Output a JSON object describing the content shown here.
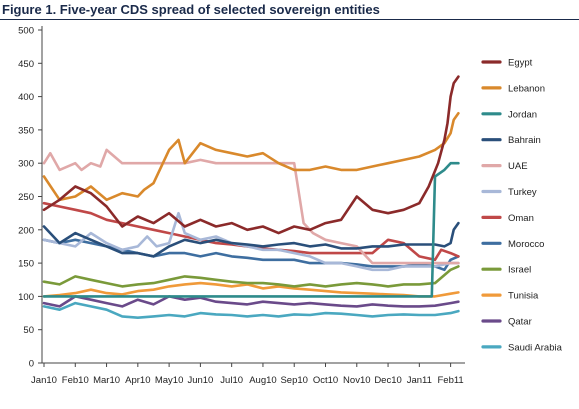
{
  "title": "Figure 1. Five-year CDS spread of selected sovereign entities",
  "chart_data": {
    "type": "line",
    "title": "Figure 1. Five-year CDS spread of selected sovereign entities",
    "xlabel": "",
    "ylabel": "",
    "ylim": [
      0,
      500
    ],
    "yticks": [
      0,
      50,
      100,
      150,
      200,
      250,
      300,
      350,
      400,
      450,
      500
    ],
    "xlim": [
      0,
      13.3
    ],
    "xticks": [
      {
        "x": 0,
        "label": "Jan10"
      },
      {
        "x": 1,
        "label": "Feb10"
      },
      {
        "x": 2,
        "label": "Mar10"
      },
      {
        "x": 3,
        "label": "Apr10"
      },
      {
        "x": 4,
        "label": "May10"
      },
      {
        "x": 5,
        "label": "Jun10"
      },
      {
        "x": 6,
        "label": "Jul10"
      },
      {
        "x": 7,
        "label": "Aug10"
      },
      {
        "x": 8,
        "label": "Sep10"
      },
      {
        "x": 9,
        "label": "Oct10"
      },
      {
        "x": 10,
        "label": "Nov10"
      },
      {
        "x": 11,
        "label": "Dec10"
      },
      {
        "x": 12,
        "label": "Jan11"
      },
      {
        "x": 13,
        "label": "Feb11"
      }
    ],
    "grid": false,
    "legend": "right",
    "series": [
      {
        "name": "Egypt",
        "color": "#8b2a2a",
        "x": [
          0,
          0.5,
          1,
          1.5,
          2,
          2.5,
          3,
          3.5,
          4,
          4.5,
          5,
          5.5,
          6,
          6.5,
          7,
          7.5,
          8,
          8.5,
          9,
          9.5,
          10,
          10.5,
          11,
          11.5,
          12,
          12.3,
          12.6,
          12.8,
          12.9,
          13,
          13.1,
          13.25
        ],
        "y": [
          230,
          245,
          265,
          255,
          235,
          205,
          220,
          210,
          225,
          205,
          215,
          205,
          210,
          200,
          205,
          195,
          205,
          200,
          210,
          215,
          250,
          230,
          225,
          230,
          240,
          265,
          300,
          335,
          360,
          400,
          420,
          430
        ]
      },
      {
        "name": "Lebanon",
        "color": "#d9892c",
        "x": [
          0,
          0.5,
          1,
          1.5,
          2,
          2.5,
          3,
          3.2,
          3.5,
          4,
          4.3,
          4.5,
          5,
          5.5,
          6,
          6.5,
          7,
          7.5,
          8,
          8.5,
          9,
          9.5,
          10,
          10.5,
          11,
          11.5,
          12,
          12.5,
          12.8,
          13,
          13.1,
          13.25
        ],
        "y": [
          280,
          245,
          250,
          265,
          245,
          255,
          250,
          260,
          270,
          320,
          335,
          300,
          330,
          320,
          315,
          310,
          315,
          300,
          290,
          290,
          295,
          290,
          290,
          295,
          300,
          305,
          310,
          320,
          330,
          345,
          365,
          375
        ]
      },
      {
        "name": "Jordan",
        "color": "#2e8b8b",
        "x": [
          0,
          1,
          2,
          3,
          4,
          5,
          6,
          7,
          8,
          9,
          10,
          11,
          12,
          12.4,
          12.5,
          12.8,
          13,
          13.25
        ],
        "y": [
          100,
          100,
          100,
          100,
          100,
          100,
          100,
          100,
          100,
          100,
          100,
          100,
          100,
          100,
          280,
          290,
          300,
          300
        ]
      },
      {
        "name": "Bahrain",
        "color": "#2a4f7a",
        "x": [
          0,
          0.5,
          1,
          1.5,
          2,
          2.5,
          3,
          3.5,
          4,
          4.5,
          5,
          5.5,
          6,
          6.5,
          7,
          7.5,
          8,
          8.5,
          9,
          9.5,
          10,
          10.5,
          11,
          11.5,
          12,
          12.5,
          12.8,
          13,
          13.1,
          13.25
        ],
        "y": [
          205,
          180,
          195,
          185,
          175,
          165,
          165,
          160,
          175,
          185,
          180,
          185,
          180,
          178,
          175,
          178,
          180,
          175,
          178,
          172,
          172,
          175,
          175,
          178,
          178,
          178,
          175,
          180,
          200,
          210
        ]
      },
      {
        "name": "UAE",
        "color": "#e0a8a8",
        "x": [
          0,
          0.2,
          0.5,
          1,
          1.2,
          1.5,
          1.8,
          2,
          2.5,
          3,
          3.5,
          4,
          4.5,
          5,
          5.5,
          6,
          6.5,
          7,
          7.5,
          8,
          8.3,
          8.6,
          9,
          9.5,
          10,
          10.5,
          11,
          11.5,
          12,
          12.5,
          13,
          13.25
        ],
        "y": [
          300,
          315,
          290,
          300,
          290,
          300,
          295,
          320,
          300,
          300,
          300,
          300,
          300,
          305,
          300,
          300,
          300,
          300,
          300,
          300,
          210,
          195,
          185,
          180,
          175,
          150,
          150,
          150,
          150,
          150,
          150,
          150
        ]
      },
      {
        "name": "Turkey",
        "color": "#a8b8d8",
        "x": [
          0,
          0.5,
          1,
          1.5,
          2,
          2.5,
          3,
          3.3,
          3.6,
          4,
          4.3,
          4.5,
          5,
          5.5,
          6,
          6.5,
          7,
          7.5,
          8,
          8.5,
          9,
          9.5,
          10,
          10.5,
          11,
          11.5,
          12,
          12.5,
          13,
          13.25
        ],
        "y": [
          185,
          180,
          175,
          195,
          180,
          170,
          175,
          190,
          175,
          180,
          225,
          195,
          185,
          190,
          180,
          175,
          170,
          170,
          165,
          160,
          150,
          150,
          145,
          140,
          140,
          145,
          145,
          145,
          150,
          150
        ]
      },
      {
        "name": "Oman",
        "color": "#c04848",
        "x": [
          0,
          0.5,
          1,
          1.5,
          2,
          2.5,
          3,
          3.5,
          4,
          4.5,
          5,
          5.5,
          6,
          6.5,
          7,
          7.5,
          8,
          8.5,
          9,
          9.5,
          10,
          10.5,
          11,
          11.5,
          12,
          12.5,
          12.7,
          13,
          13.25
        ],
        "y": [
          240,
          235,
          230,
          225,
          215,
          210,
          205,
          200,
          195,
          190,
          185,
          180,
          178,
          175,
          172,
          170,
          168,
          165,
          165,
          165,
          165,
          165,
          185,
          180,
          160,
          155,
          170,
          165,
          160
        ]
      },
      {
        "name": "Morocco",
        "color": "#3e6ea0",
        "x": [
          0,
          0.5,
          1,
          1.5,
          2,
          2.5,
          3,
          3.5,
          4,
          4.5,
          5,
          5.5,
          6,
          6.5,
          7,
          7.5,
          8,
          8.5,
          9,
          9.5,
          10,
          10.5,
          11,
          11.5,
          12,
          12.5,
          12.8,
          13,
          13.25
        ],
        "y": [
          185,
          180,
          185,
          180,
          175,
          170,
          165,
          160,
          165,
          165,
          160,
          165,
          160,
          158,
          155,
          155,
          155,
          150,
          150,
          150,
          148,
          145,
          145,
          145,
          148,
          145,
          140,
          155,
          160
        ]
      },
      {
        "name": "Israel",
        "color": "#7a9a3a",
        "x": [
          0,
          0.5,
          1,
          1.5,
          2,
          2.5,
          3,
          3.5,
          4,
          4.5,
          5,
          5.5,
          6,
          6.5,
          7,
          7.5,
          8,
          8.5,
          9,
          9.5,
          10,
          10.5,
          11,
          11.5,
          12,
          12.5,
          13,
          13.25
        ],
        "y": [
          122,
          118,
          130,
          125,
          120,
          115,
          118,
          120,
          125,
          130,
          128,
          125,
          122,
          120,
          120,
          118,
          115,
          118,
          115,
          118,
          120,
          118,
          115,
          118,
          118,
          120,
          140,
          145
        ]
      },
      {
        "name": "Tunisia",
        "color": "#f09a3a",
        "x": [
          0,
          0.5,
          1,
          1.5,
          2,
          2.5,
          3,
          3.5,
          4,
          4.5,
          5,
          5.5,
          6,
          6.5,
          7,
          7.5,
          8,
          8.5,
          9,
          9.5,
          10,
          10.5,
          11,
          11.5,
          12,
          12.5,
          13,
          13.25
        ],
        "y": [
          100,
          102,
          105,
          110,
          105,
          103,
          108,
          110,
          115,
          118,
          120,
          118,
          115,
          118,
          112,
          115,
          112,
          110,
          108,
          106,
          105,
          104,
          103,
          102,
          100,
          100,
          104,
          106
        ]
      },
      {
        "name": "Qatar",
        "color": "#6a4a8a",
        "x": [
          0,
          0.5,
          1,
          1.5,
          2,
          2.5,
          3,
          3.5,
          4,
          4.5,
          5,
          5.5,
          6,
          6.5,
          7,
          7.5,
          8,
          8.5,
          9,
          9.5,
          10,
          10.5,
          11,
          11.5,
          12,
          12.5,
          13,
          13.25
        ],
        "y": [
          90,
          85,
          100,
          95,
          90,
          85,
          95,
          88,
          100,
          95,
          98,
          92,
          90,
          88,
          92,
          90,
          88,
          90,
          88,
          86,
          85,
          88,
          86,
          85,
          85,
          86,
          90,
          92
        ]
      },
      {
        "name": "Saudi Arabia",
        "color": "#4aa8c0",
        "x": [
          0,
          0.5,
          1,
          1.5,
          2,
          2.5,
          3,
          3.5,
          4,
          4.5,
          5,
          5.5,
          6,
          6.5,
          7,
          7.5,
          8,
          8.5,
          9,
          9.5,
          10,
          10.5,
          11,
          11.5,
          12,
          12.5,
          13,
          13.25
        ],
        "y": [
          85,
          80,
          90,
          85,
          80,
          70,
          68,
          70,
          72,
          70,
          75,
          73,
          72,
          70,
          72,
          70,
          73,
          72,
          75,
          74,
          72,
          70,
          72,
          73,
          72,
          72,
          75,
          78
        ]
      }
    ]
  }
}
